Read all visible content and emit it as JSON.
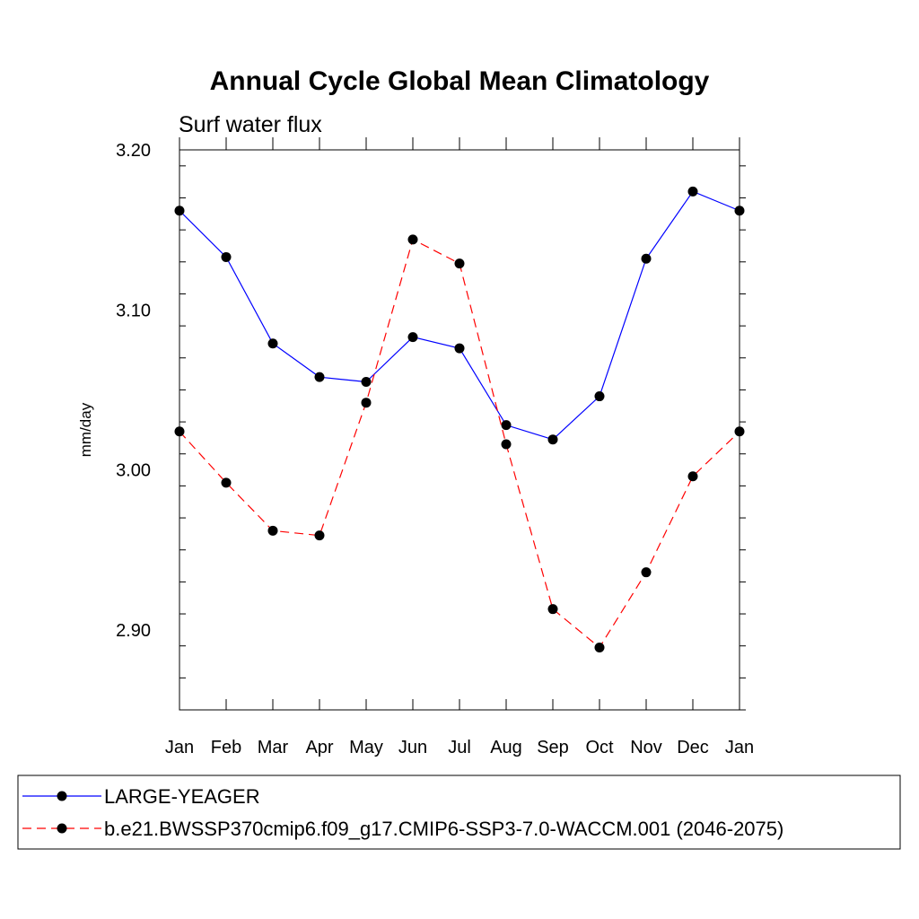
{
  "chart_data": {
    "type": "line",
    "title": "Annual Cycle Global Mean Climatology",
    "subtitle": "Surf water flux",
    "xlabel": "",
    "ylabel": "mm/day",
    "categories": [
      "Jan",
      "Feb",
      "Mar",
      "Apr",
      "May",
      "Jun",
      "Jul",
      "Aug",
      "Sep",
      "Oct",
      "Nov",
      "Dec",
      "Jan"
    ],
    "ylim": [
      2.85,
      3.2
    ],
    "yticks": [
      2.9,
      3.0,
      3.1,
      3.2
    ],
    "ytick_labels": [
      "2.90",
      "3.00",
      "3.10",
      "3.20"
    ],
    "yminor_step": 0.02,
    "grid": false,
    "legend_position": "bottom",
    "series": [
      {
        "name": "LARGE-YEAGER",
        "color": "#0000ff",
        "line_style": "solid",
        "marker": "circle",
        "values": [
          3.162,
          3.133,
          3.079,
          3.058,
          3.055,
          3.083,
          3.076,
          3.028,
          3.019,
          3.046,
          3.132,
          3.174,
          3.162
        ]
      },
      {
        "name": "b.e21.BWSSP370cmip6.f09_g17.CMIP6-SSP3-7.0-WACCM.001 (2046-2075)",
        "color": "#ff0000",
        "line_style": "dashed",
        "marker": "circle",
        "values": [
          3.024,
          2.992,
          2.962,
          2.959,
          3.042,
          3.144,
          3.129,
          3.016,
          2.913,
          2.889,
          2.936,
          2.996,
          3.024
        ]
      }
    ]
  }
}
